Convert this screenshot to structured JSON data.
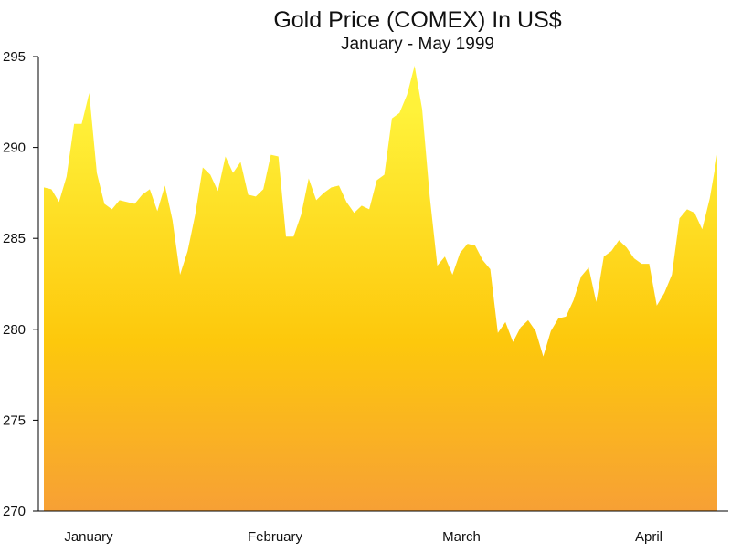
{
  "chart_data": {
    "type": "area",
    "title": "Gold Price (COMEX) In US$",
    "subtitle": "January - May 1999",
    "xlabel": "",
    "ylabel": "",
    "ylim": [
      270,
      295
    ],
    "yticks": [
      270,
      275,
      280,
      285,
      290,
      295
    ],
    "xticks": [
      "January",
      "February",
      "March",
      "April"
    ],
    "grid": false,
    "legend": "none",
    "colors": {
      "top": "#fff23a",
      "middle": "#fdc80c",
      "bottom": "#f7a035",
      "axis": "#000000"
    },
    "series": [
      {
        "values": [
          287.8,
          287.7,
          287.0,
          288.4,
          291.3,
          291.3,
          293.0,
          288.6,
          286.9,
          286.6,
          287.1,
          287.0,
          286.9,
          287.4,
          287.7,
          286.5,
          287.9,
          286.0,
          283.0,
          284.3,
          286.3,
          288.9,
          288.5,
          287.6,
          289.5,
          288.6,
          289.2,
          287.4,
          287.3,
          287.7,
          289.6,
          289.5,
          285.1,
          285.1,
          286.3,
          288.3,
          287.1,
          287.5,
          287.8,
          287.9,
          287.0,
          286.4,
          286.8,
          286.6,
          288.2,
          288.5,
          291.6,
          291.9,
          292.9,
          294.5,
          292.1,
          287.3,
          283.5,
          284.0,
          283.0,
          284.2,
          284.7,
          284.6,
          283.8,
          283.3,
          279.8,
          280.4,
          279.3,
          280.1,
          280.5,
          279.9,
          278.5,
          279.9,
          280.6,
          280.7,
          281.6,
          282.9,
          283.4,
          281.5,
          284.0,
          284.3,
          284.9,
          284.5,
          283.9,
          283.6,
          283.6,
          281.3,
          282.0,
          283.0,
          286.1,
          286.6,
          286.4,
          285.5,
          287.2,
          289.6
        ]
      }
    ]
  }
}
